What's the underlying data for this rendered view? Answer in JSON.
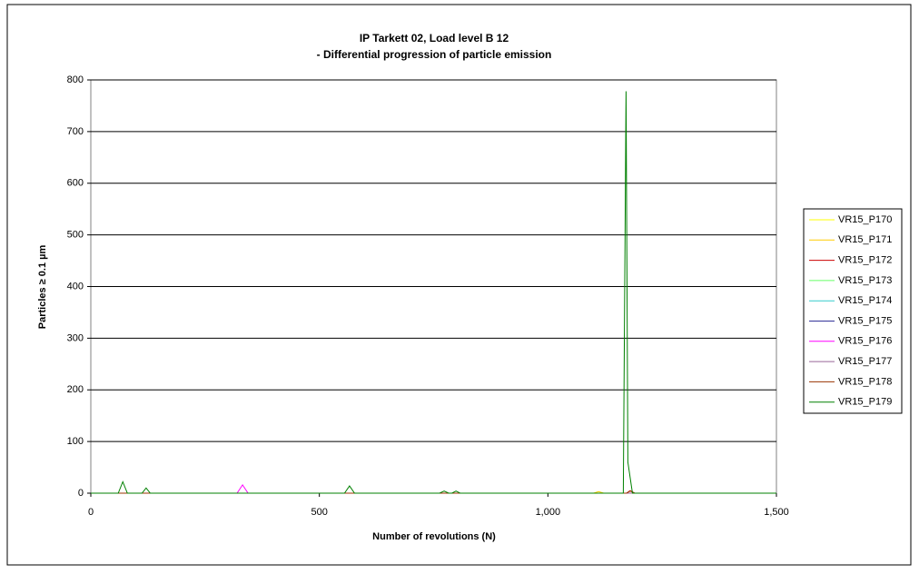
{
  "chart_data": {
    "type": "line",
    "title": "IP Tarkett 02, Load level B 12",
    "subtitle": "- Differential progression of particle emission",
    "x_label": "Number of revolutions (N)",
    "y_label": "Particles ≥ 0.1 µm",
    "xlim": [
      0,
      1500
    ],
    "xticks": [
      0,
      500,
      {
        "value": 1000,
        "label": "1,000"
      },
      {
        "value": 1500,
        "label": "1,500"
      }
    ],
    "ylim": [
      0,
      800
    ],
    "yticks": [
      0,
      100,
      200,
      300,
      400,
      500,
      600,
      700,
      800
    ],
    "grid": true,
    "legend": "right",
    "series": [
      {
        "name": "VR15_P170",
        "color": "#ffff00",
        "x": [
          0,
          1500
        ],
        "values": [
          0,
          0
        ]
      },
      {
        "name": "VR15_P171",
        "color": "#ffcc00",
        "x": [
          0,
          1100,
          1111,
          1122,
          1500
        ],
        "values": [
          0,
          0,
          3,
          0,
          0
        ]
      },
      {
        "name": "VR15_P172",
        "color": "#cc0000",
        "x": [
          0,
          1172,
          1180,
          1190,
          1500
        ],
        "values": [
          0,
          0,
          5,
          0,
          0
        ]
      },
      {
        "name": "VR15_P173",
        "color": "#66ff66",
        "x": [
          0,
          1500
        ],
        "values": [
          0,
          0
        ]
      },
      {
        "name": "VR15_P174",
        "color": "#33cccc",
        "x": [
          0,
          1500
        ],
        "values": [
          0,
          0
        ]
      },
      {
        "name": "VR15_P175",
        "color": "#333399",
        "x": [
          0,
          1500
        ],
        "values": [
          0,
          0
        ]
      },
      {
        "name": "VR15_P176",
        "color": "#ff00ff",
        "x": [
          0,
          320,
          332,
          344,
          1500
        ],
        "values": [
          0,
          0,
          16,
          0,
          0
        ]
      },
      {
        "name": "VR15_P177",
        "color": "#996699",
        "x": [
          0,
          1500
        ],
        "values": [
          0,
          0
        ]
      },
      {
        "name": "VR15_P178",
        "color": "#993300",
        "x": [
          0,
          1172,
          1180,
          1190,
          1500
        ],
        "values": [
          0,
          0,
          4,
          0,
          0
        ]
      },
      {
        "name": "VR15_P179",
        "color": "#008000",
        "x": [
          0,
          60,
          70,
          80,
          112,
          121,
          130,
          555,
          566,
          577,
          763,
          773,
          783,
          790,
          799,
          808,
          1165,
          1171,
          1175,
          1185,
          1500
        ],
        "values": [
          0,
          0,
          22,
          0,
          0,
          10,
          0,
          0,
          14,
          0,
          0,
          4,
          0,
          0,
          4,
          0,
          0,
          778,
          60,
          0,
          0
        ]
      }
    ]
  }
}
